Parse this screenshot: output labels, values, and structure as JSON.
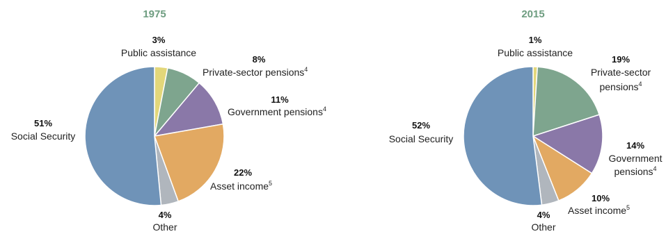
{
  "chart_data": [
    {
      "type": "pie",
      "title": "1975",
      "slices": [
        {
          "name": "Public assistance",
          "value": 3,
          "label": "3%",
          "footnote": "",
          "color": "#e3d77a"
        },
        {
          "name": "Private-sector pensions",
          "value": 8,
          "label": "8%",
          "footnote": "4",
          "color": "#7ea58e"
        },
        {
          "name": "Government pensions",
          "value": 11,
          "label": "11%",
          "footnote": "4",
          "color": "#8a78a8"
        },
        {
          "name": "Asset income",
          "value": 22,
          "label": "22%",
          "footnote": "5",
          "color": "#e2a962"
        },
        {
          "name": "Other",
          "value": 4,
          "label": "4%",
          "footnote": "",
          "color": "#b0b6bd"
        },
        {
          "name": "Social Security",
          "value": 51,
          "label": "51%",
          "footnote": "",
          "color": "#6f93b8"
        }
      ]
    },
    {
      "type": "pie",
      "title": "2015",
      "slices": [
        {
          "name": "Public assistance",
          "value": 1,
          "label": "1%",
          "footnote": "",
          "color": "#e3d77a"
        },
        {
          "name": "Private-sector pensions",
          "value": 19,
          "label": "19%",
          "footnote": "4",
          "color": "#7ea58e"
        },
        {
          "name": "Government pensions",
          "value": 14,
          "label": "14%",
          "footnote": "4",
          "color": "#8a78a8"
        },
        {
          "name": "Asset income",
          "value": 10,
          "label": "10%",
          "footnote": "5",
          "color": "#e2a962"
        },
        {
          "name": "Other",
          "value": 4,
          "label": "4%",
          "footnote": "",
          "color": "#b0b6bd"
        },
        {
          "name": "Social Security",
          "value": 52,
          "label": "52%",
          "footnote": "",
          "color": "#6f93b8"
        }
      ]
    }
  ],
  "colors": {
    "title": "#6e9d80"
  }
}
